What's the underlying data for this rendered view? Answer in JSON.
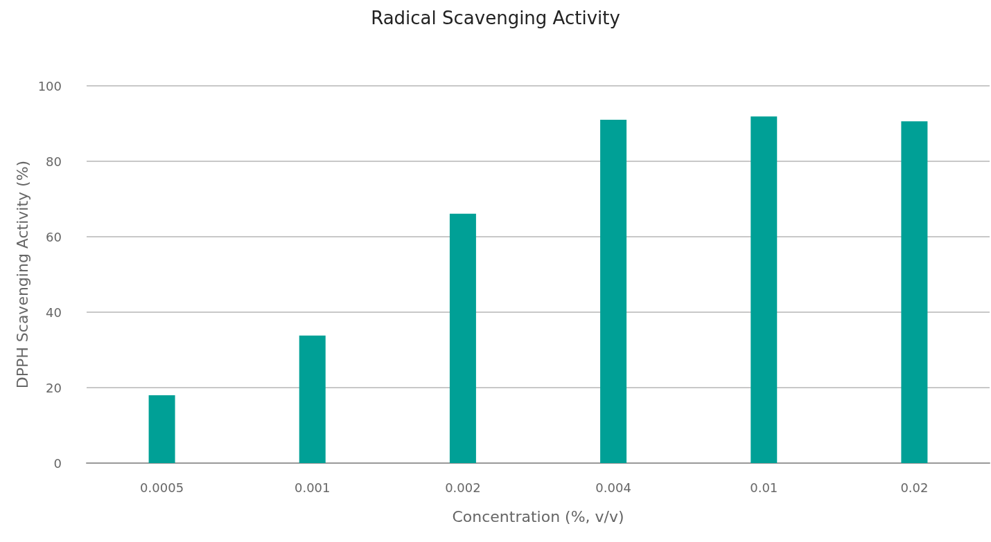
{
  "chart_data": {
    "type": "bar",
    "title": "Radical Scavenging Activity",
    "xlabel": "Concentration (%, v/v)",
    "ylabel": "DPPH Scavenging Activity (%)",
    "categories": [
      "0.0005",
      "0.001",
      "0.002",
      "0.004",
      "0.01",
      "0.02"
    ],
    "values": [
      18,
      33.8,
      66.1,
      91,
      91.9,
      90.6
    ],
    "color": "#00a096",
    "ylim": [
      0,
      100
    ],
    "yticks": [
      0,
      20,
      40,
      60,
      80,
      100
    ],
    "grid": "y"
  }
}
